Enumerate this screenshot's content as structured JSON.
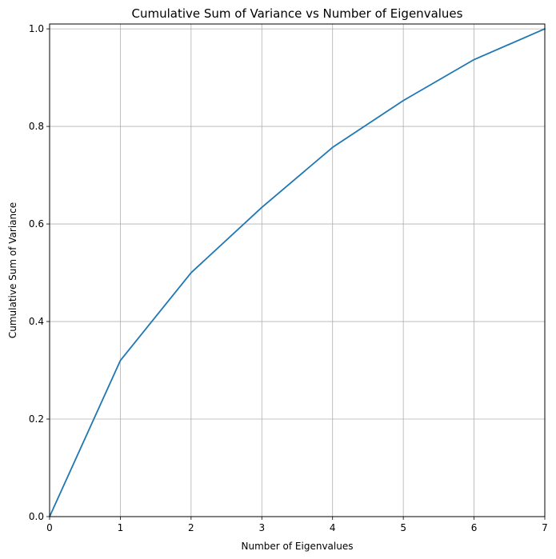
{
  "chart_data": {
    "type": "line",
    "title": "Cumulative Sum of Variance vs Number of Eigenvalues",
    "xlabel": "Number of Eigenvalues",
    "ylabel": "Cumulative Sum of Variance",
    "xlim": [
      0,
      7
    ],
    "ylim": [
      0,
      1.01
    ],
    "grid": true,
    "x_ticks": [
      0,
      1,
      2,
      3,
      4,
      5,
      6,
      7
    ],
    "x_tick_labels": [
      "0",
      "1",
      "2",
      "3",
      "4",
      "5",
      "6",
      "7"
    ],
    "y_ticks": [
      0.0,
      0.2,
      0.4,
      0.6,
      0.8,
      1.0
    ],
    "y_tick_labels": [
      "0.0",
      "0.2",
      "0.4",
      "0.6",
      "0.8",
      "1.0"
    ],
    "series": [
      {
        "color": "#1f77b4",
        "x": [
          0,
          1,
          2,
          3,
          4,
          5,
          6,
          7
        ],
        "y": [
          0.0,
          0.32,
          0.5,
          0.634,
          0.757,
          0.853,
          0.937,
          1.0
        ]
      }
    ]
  }
}
